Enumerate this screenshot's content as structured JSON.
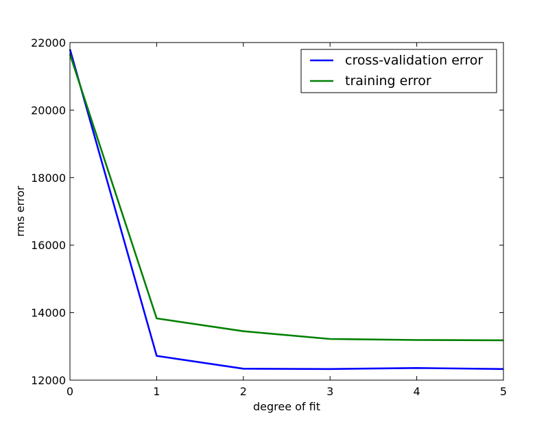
{
  "chart_data": {
    "type": "line",
    "title": "",
    "xlabel": "degree of fit",
    "ylabel": "rms error",
    "xlim": [
      0,
      5
    ],
    "ylim": [
      12000,
      22000
    ],
    "xticks": [
      "0",
      "1",
      "2",
      "3",
      "4",
      "5"
    ],
    "yticks": [
      "12000",
      "14000",
      "16000",
      "18000",
      "20000",
      "22000"
    ],
    "grid": false,
    "legend_position": "top-right",
    "x": [
      0,
      1,
      2,
      3,
      4,
      5
    ],
    "series": [
      {
        "name": "cross-validation error",
        "color": "#0000ff",
        "values": [
          21800,
          12720,
          12340,
          12330,
          12360,
          12330
        ]
      },
      {
        "name": "training error",
        "color": "#008000",
        "values": [
          21650,
          13830,
          13450,
          13220,
          13190,
          13180
        ]
      }
    ]
  }
}
